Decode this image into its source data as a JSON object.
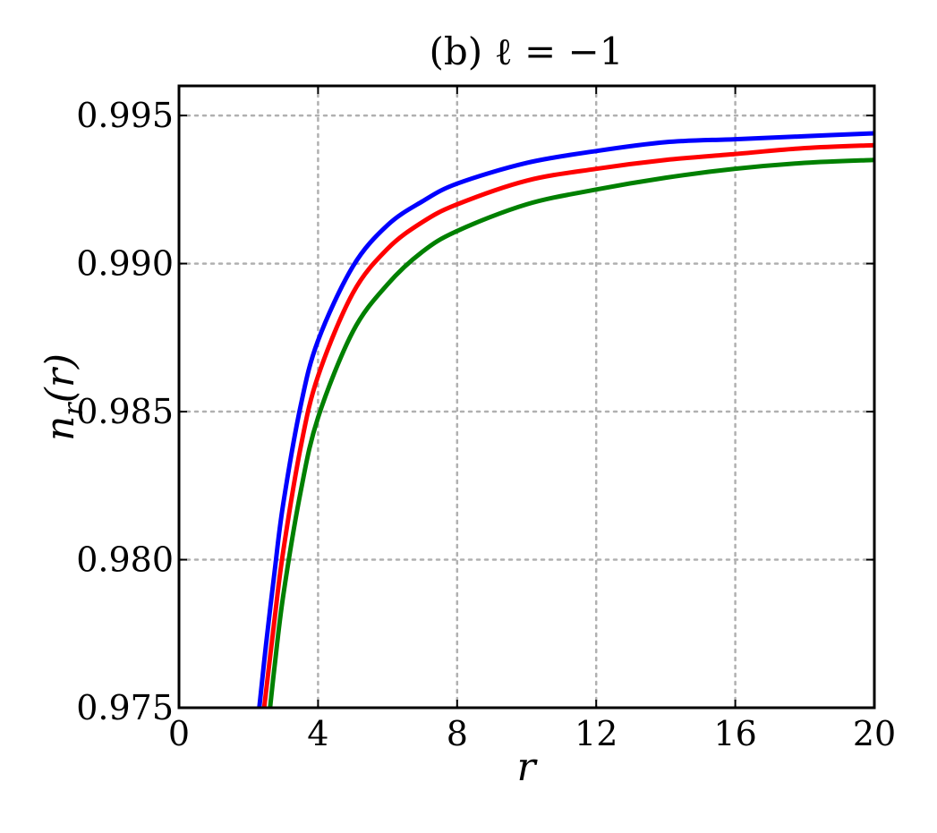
{
  "chart_data": {
    "type": "line",
    "title": "(b) ℓ = −1",
    "xlabel": "r",
    "ylabel": "n_r(r)",
    "xlim": [
      0,
      20
    ],
    "ylim": [
      0.975,
      0.996
    ],
    "xticks": [
      0,
      4,
      8,
      12,
      16,
      20
    ],
    "yticks": [
      0.975,
      0.98,
      0.985,
      0.99,
      0.995
    ],
    "xtick_labels": [
      "0",
      "4",
      "8",
      "12",
      "16",
      "20"
    ],
    "ytick_labels": [
      "0.975",
      "0.980",
      "0.985",
      "0.990",
      "0.995"
    ],
    "grid": true,
    "legend": "none",
    "series": [
      {
        "color": "#0000ff",
        "x": [
          2.31,
          2.5,
          2.75,
          3.0,
          3.5,
          4.0,
          5.0,
          6.0,
          7.0,
          8.0,
          10.0,
          12.0,
          14.0,
          16.0,
          18.0,
          20.0
        ],
        "y": [
          0.975,
          0.9771,
          0.9796,
          0.9819,
          0.9852,
          0.9874,
          0.9899,
          0.9913,
          0.9921,
          0.9927,
          0.9934,
          0.9938,
          0.9941,
          0.9942,
          0.9943,
          0.9944
        ]
      },
      {
        "color": "#ff0000",
        "x": [
          2.45,
          2.75,
          3.0,
          3.5,
          4.0,
          5.0,
          6.0,
          7.0,
          8.0,
          10.0,
          12.0,
          14.0,
          16.0,
          18.0,
          20.0
        ],
        "y": [
          0.975,
          0.978,
          0.9803,
          0.9838,
          0.9862,
          0.989,
          0.9905,
          0.9914,
          0.992,
          0.9928,
          0.9932,
          0.9935,
          0.9937,
          0.9939,
          0.994
        ]
      },
      {
        "color": "#008000",
        "x": [
          2.62,
          2.75,
          3.0,
          3.5,
          4.0,
          5.0,
          6.0,
          7.0,
          8.0,
          10.0,
          12.0,
          14.0,
          16.0,
          18.0,
          20.0
        ],
        "y": [
          0.975,
          0.9764,
          0.9788,
          0.9823,
          0.9848,
          0.9877,
          0.9893,
          0.9904,
          0.9911,
          0.992,
          0.9925,
          0.9929,
          0.9932,
          0.9934,
          0.9935
        ]
      }
    ]
  }
}
